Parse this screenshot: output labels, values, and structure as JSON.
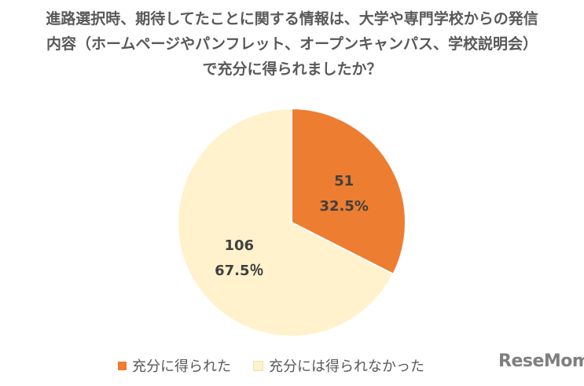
{
  "chart_data": {
    "type": "pie",
    "title_lines": [
      "進路選択時、期待してたことに関する情報は、大学や専門学校からの発信",
      "内容（ホームページやパンフレット、オープンキャンパス、学校説明会）",
      "で充分に得られましたか？"
    ],
    "slices": [
      {
        "name": "充分に得られた",
        "value": 51,
        "percent_label": "32.5%",
        "color": "#ED7D31"
      },
      {
        "name": "充分には得られなかった",
        "value": 106,
        "percent_label": "67.5％",
        "color": "#FFF2CC"
      }
    ],
    "legend_position": "bottom"
  },
  "logo_text": "ReseMom"
}
